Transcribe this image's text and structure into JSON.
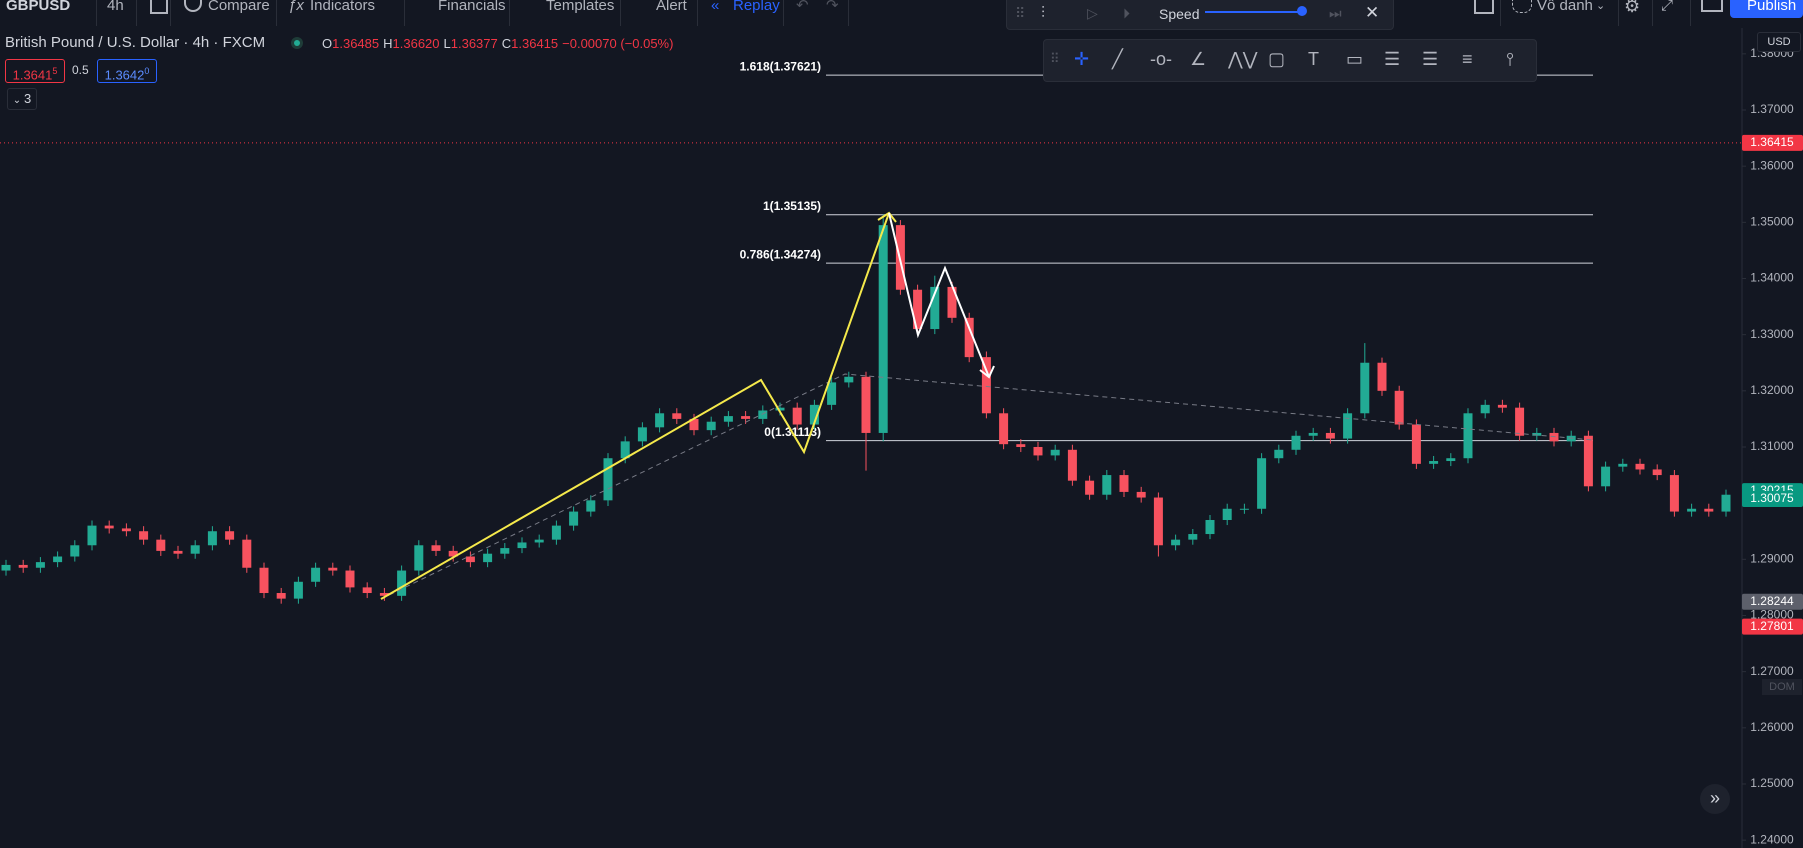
{
  "toolbar": {
    "symbol": "GBPUSD",
    "interval": "4h",
    "buttons": [
      "Compare",
      "Indicators",
      "Financials",
      "Templates",
      "Alert"
    ],
    "replay": "Replay",
    "layout_name": "Vô danh",
    "publish": "Publish"
  },
  "replay_bar": {
    "speed": "Speed"
  },
  "legend": {
    "title": "British Pound / U.S. Dollar · 4h · FXCM",
    "ohlc": [
      {
        "label": "O",
        "value": "1.36485"
      },
      {
        "label": "H",
        "value": "1.36620"
      },
      {
        "label": "L",
        "value": "1.36377"
      },
      {
        "label": "C",
        "value": "1.36415"
      }
    ],
    "change": "−0.00070 (−0.05%)"
  },
  "quote": {
    "bid": "1.3641",
    "bid_pip": "5",
    "spread": "0.5",
    "ask": "1.3642",
    "ask_pip": "0"
  },
  "indicators_count": "3",
  "price_axis": {
    "currency": "USD",
    "dom": "DOM"
  },
  "chart_data": {
    "type": "candlestick",
    "up_color": "#22ab94",
    "down_color": "#f7525f",
    "grid": false,
    "ylim": [
      1.2386,
      1.3846
    ],
    "yticks": [
      {
        "value": 1.38,
        "label": "1.38000"
      },
      {
        "value": 1.37,
        "label": "1.37000"
      },
      {
        "value": 1.36,
        "label": "1.36000"
      },
      {
        "value": 1.35,
        "label": "1.35000"
      },
      {
        "value": 1.34,
        "label": "1.34000"
      },
      {
        "value": 1.33,
        "label": "1.33000"
      },
      {
        "value": 1.32,
        "label": "1.32000"
      },
      {
        "value": 1.31,
        "label": "1.31000"
      },
      {
        "value": 1.3,
        "label": "1.30000"
      },
      {
        "value": 1.29,
        "label": "1.29000"
      },
      {
        "value": 1.28,
        "label": "1.28000"
      },
      {
        "value": 1.27,
        "label": "1.27000"
      },
      {
        "value": 1.26,
        "label": "1.26000"
      },
      {
        "value": 1.25,
        "label": "1.25000"
      },
      {
        "value": 1.24,
        "label": "1.24000"
      }
    ],
    "price_labels": [
      {
        "value": 1.36415,
        "label": "1.36415",
        "color": "#f23645"
      },
      {
        "value": 1.30215,
        "label": "1.30215",
        "color": "#089981"
      },
      {
        "value": 1.30075,
        "label": "1.30075",
        "color": "#089981"
      },
      {
        "value": 1.28244,
        "label": "1.28244",
        "color": "#5d606b"
      },
      {
        "value": 1.27801,
        "label": "1.27801",
        "color": "#f23645"
      }
    ],
    "fib_levels": [
      {
        "value": 1.37621,
        "label": "1.618(1.37621)"
      },
      {
        "value": 1.35135,
        "label": "1(1.35135)"
      },
      {
        "value": 1.34274,
        "label": "0.786(1.34274)"
      },
      {
        "value": 1.31113,
        "label": "0(1.31113)"
      }
    ],
    "candles": [
      [
        1.288,
        1.2899,
        1.2871,
        1.289
      ],
      [
        1.289,
        1.2899,
        1.2876,
        1.2885
      ],
      [
        1.2885,
        1.2904,
        1.2876,
        1.2895
      ],
      [
        1.2895,
        1.2914,
        1.2886,
        1.2905
      ],
      [
        1.2905,
        1.2934,
        1.2896,
        1.2925
      ],
      [
        1.2925,
        1.2969,
        1.2916,
        1.296
      ],
      [
        1.296,
        1.2969,
        1.2946,
        1.2955
      ],
      [
        1.2955,
        1.2964,
        1.2941,
        1.295
      ],
      [
        1.295,
        1.2959,
        1.2926,
        1.2935
      ],
      [
        1.2935,
        1.2944,
        1.2906,
        1.2915
      ],
      [
        1.2915,
        1.2924,
        1.2901,
        1.291
      ],
      [
        1.291,
        1.2934,
        1.2901,
        1.2925
      ],
      [
        1.2925,
        1.2959,
        1.2916,
        1.295
      ],
      [
        1.295,
        1.2959,
        1.2926,
        1.2935
      ],
      [
        1.2935,
        1.2944,
        1.2876,
        1.2885
      ],
      [
        1.2885,
        1.2894,
        1.2831,
        1.284
      ],
      [
        1.284,
        1.2849,
        1.2821,
        1.283
      ],
      [
        1.283,
        1.2869,
        1.2821,
        1.286
      ],
      [
        1.286,
        1.2894,
        1.2851,
        1.2885
      ],
      [
        1.2885,
        1.2894,
        1.2871,
        1.288
      ],
      [
        1.288,
        1.2889,
        1.2841,
        1.285
      ],
      [
        1.285,
        1.2859,
        1.2831,
        1.284
      ],
      [
        1.284,
        1.2849,
        1.2826,
        1.2835
      ],
      [
        1.2835,
        1.2889,
        1.2826,
        1.288
      ],
      [
        1.288,
        1.2934,
        1.2871,
        1.2925
      ],
      [
        1.2925,
        1.2934,
        1.2906,
        1.2915
      ],
      [
        1.2915,
        1.2924,
        1.2896,
        1.2905
      ],
      [
        1.2905,
        1.2914,
        1.2886,
        1.2895
      ],
      [
        1.2895,
        1.2919,
        1.2886,
        1.291
      ],
      [
        1.291,
        1.2929,
        1.2901,
        1.292
      ],
      [
        1.292,
        1.2939,
        1.2911,
        1.293
      ],
      [
        1.293,
        1.2944,
        1.2921,
        1.2935
      ],
      [
        1.2935,
        1.2969,
        1.2926,
        1.296
      ],
      [
        1.296,
        1.2994,
        1.2951,
        1.2985
      ],
      [
        1.2985,
        1.3014,
        1.2976,
        1.3005
      ],
      [
        1.3005,
        1.3089,
        1.2995,
        1.308
      ],
      [
        1.308,
        1.3119,
        1.3071,
        1.311
      ],
      [
        1.311,
        1.3144,
        1.3101,
        1.3135
      ],
      [
        1.3135,
        1.3169,
        1.3126,
        1.316
      ],
      [
        1.316,
        1.3169,
        1.3141,
        1.315
      ],
      [
        1.315,
        1.3159,
        1.3121,
        1.313
      ],
      [
        1.313,
        1.3154,
        1.3121,
        1.3145
      ],
      [
        1.3145,
        1.3164,
        1.3136,
        1.3155
      ],
      [
        1.3155,
        1.3164,
        1.3141,
        1.315
      ],
      [
        1.315,
        1.3174,
        1.3141,
        1.3165
      ],
      [
        1.3165,
        1.3179,
        1.3156,
        1.317
      ],
      [
        1.317,
        1.3179,
        1.3131,
        1.314
      ],
      [
        1.314,
        1.3184,
        1.3131,
        1.3175
      ],
      [
        1.3175,
        1.3224,
        1.3166,
        1.3215
      ],
      [
        1.3215,
        1.3234,
        1.3206,
        1.3225
      ],
      [
        1.3225,
        1.3234,
        1.3058,
        1.3125
      ],
      [
        1.3125,
        1.3514,
        1.311,
        1.3495
      ],
      [
        1.3495,
        1.3504,
        1.3371,
        1.338
      ],
      [
        1.338,
        1.3389,
        1.3301,
        1.331
      ],
      [
        1.331,
        1.3405,
        1.3301,
        1.3385
      ],
      [
        1.3385,
        1.3394,
        1.3321,
        1.333
      ],
      [
        1.333,
        1.3339,
        1.3251,
        1.326
      ],
      [
        1.326,
        1.327,
        1.3151,
        1.316
      ],
      [
        1.316,
        1.3169,
        1.3096,
        1.3105
      ],
      [
        1.3105,
        1.3114,
        1.3091,
        1.31
      ],
      [
        1.31,
        1.3109,
        1.3076,
        1.3085
      ],
      [
        1.3085,
        1.3104,
        1.3076,
        1.3095
      ],
      [
        1.3095,
        1.3104,
        1.3031,
        1.304
      ],
      [
        1.304,
        1.3049,
        1.3006,
        1.3015
      ],
      [
        1.3015,
        1.3059,
        1.3006,
        1.305
      ],
      [
        1.305,
        1.3059,
        1.3011,
        1.302
      ],
      [
        1.302,
        1.3029,
        1.3001,
        1.301
      ],
      [
        1.301,
        1.3019,
        1.2905,
        1.2925
      ],
      [
        1.2925,
        1.2944,
        1.2916,
        1.2935
      ],
      [
        1.2935,
        1.2954,
        1.2926,
        1.2945
      ],
      [
        1.2945,
        1.2979,
        1.2936,
        1.297
      ],
      [
        1.297,
        1.2999,
        1.2961,
        1.299
      ],
      [
        1.299,
        1.2999,
        1.2981,
        1.299
      ],
      [
        1.299,
        1.3089,
        1.2981,
        1.308
      ],
      [
        1.308,
        1.3104,
        1.3071,
        1.3095
      ],
      [
        1.3095,
        1.3129,
        1.3086,
        1.312
      ],
      [
        1.312,
        1.3134,
        1.3111,
        1.3125
      ],
      [
        1.3125,
        1.3134,
        1.3106,
        1.3115
      ],
      [
        1.3115,
        1.3169,
        1.3106,
        1.316
      ],
      [
        1.316,
        1.3285,
        1.3151,
        1.325
      ],
      [
        1.325,
        1.3259,
        1.3191,
        1.32
      ],
      [
        1.32,
        1.3209,
        1.3131,
        1.314
      ],
      [
        1.314,
        1.3149,
        1.3061,
        1.307
      ],
      [
        1.307,
        1.3084,
        1.3061,
        1.3075
      ],
      [
        1.3075,
        1.3089,
        1.3066,
        1.308
      ],
      [
        1.308,
        1.3169,
        1.3071,
        1.316
      ],
      [
        1.316,
        1.3184,
        1.3151,
        1.3175
      ],
      [
        1.3175,
        1.3184,
        1.3161,
        1.317
      ],
      [
        1.317,
        1.3179,
        1.3111,
        1.312
      ],
      [
        1.312,
        1.3134,
        1.3111,
        1.3125
      ],
      [
        1.3125,
        1.3134,
        1.3101,
        1.311
      ],
      [
        1.311,
        1.3129,
        1.3101,
        1.312
      ],
      [
        1.312,
        1.3129,
        1.3021,
        1.303
      ],
      [
        1.303,
        1.3074,
        1.3021,
        1.3065
      ],
      [
        1.3065,
        1.3079,
        1.3056,
        1.307
      ],
      [
        1.307,
        1.3079,
        1.3051,
        1.306
      ],
      [
        1.306,
        1.3069,
        1.3041,
        1.305
      ],
      [
        1.305,
        1.3059,
        1.2976,
        1.2985
      ],
      [
        1.2985,
        1.2999,
        1.2976,
        1.299
      ],
      [
        1.299,
        1.2999,
        1.2976,
        1.2985
      ],
      [
        1.2985,
        1.3024,
        1.2976,
        1.3015
      ]
    ]
  }
}
